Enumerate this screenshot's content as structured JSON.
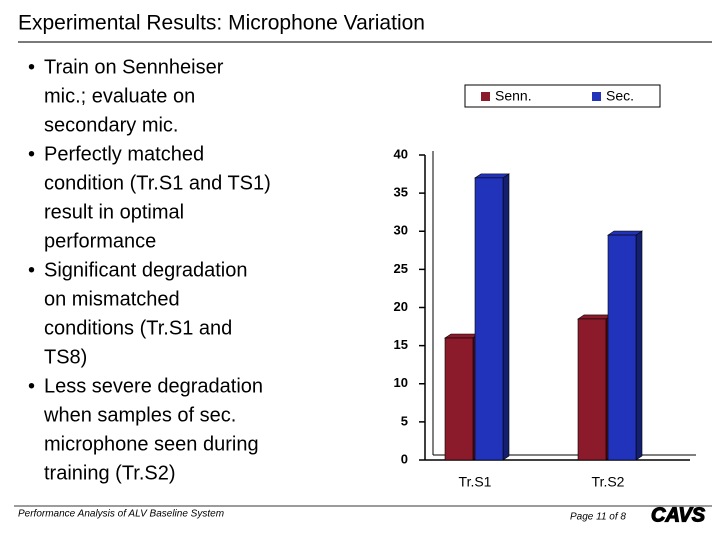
{
  "title": "Experimental Results: Microphone Variation",
  "bullets": [
    [
      "Train on Sennheiser",
      "mic.; evaluate on",
      "secondary mic."
    ],
    [
      "Perfectly matched",
      "condition (Tr.S1 and TS1)",
      "result in optimal",
      "performance"
    ],
    [
      "Significant degradation",
      "on mismatched",
      "conditions (Tr.S1 and",
      "TS8)"
    ],
    [
      "Less severe degradation",
      "when samples of sec.",
      "microphone seen during",
      "training (Tr.S2)"
    ]
  ],
  "footer": "Performance Analysis of ALV Baseline System",
  "page": "Page 11 of 8",
  "logo": "CAVS",
  "chart_data": {
    "type": "bar",
    "categories": [
      "Tr.S1",
      "Tr.S2"
    ],
    "series": [
      {
        "name": "Senn.",
        "color": "#8b1a2b",
        "values": [
          16,
          18.5
        ]
      },
      {
        "name": "Sec.",
        "color": "#2233bb",
        "values": [
          37,
          29.5
        ]
      }
    ],
    "ylim": [
      0,
      40
    ],
    "yticks": [
      0,
      5,
      10,
      15,
      20,
      25,
      30,
      35,
      40
    ]
  }
}
